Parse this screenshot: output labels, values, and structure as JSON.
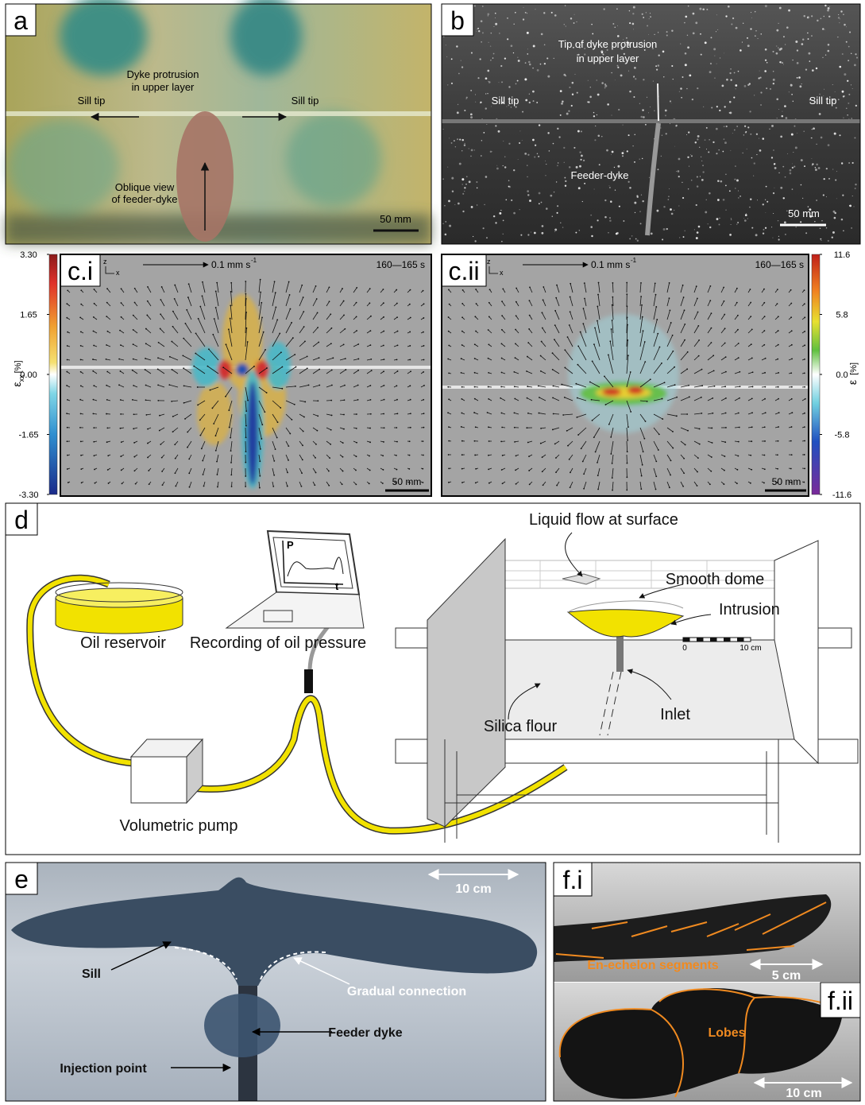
{
  "panel_a": {
    "label": "a",
    "sill_tip_left": "Sill tip",
    "sill_tip_right": "Sill tip",
    "dyke_protrusion": [
      "Dyke protrusion",
      "in upper layer"
    ],
    "feeder_view": [
      "Oblique view",
      "of feeder-dyke"
    ],
    "scale_bar": "50 mm"
  },
  "panel_b": {
    "label": "b",
    "dyke_tip": [
      "Tip of dyke protrusion",
      "in upper layer"
    ],
    "sill_tip_left": "Sill tip",
    "sill_tip_right": "Sill tip",
    "feeder": "Feeder-dyke",
    "scale_bar": "50 mm"
  },
  "panel_c_i": {
    "label": "c.i",
    "axes": {
      "z": "z",
      "x": "x"
    },
    "velocity": "0.1 mm s",
    "velocity_exp": "-1",
    "time": "160—165 s",
    "scale_bar": "50 mm",
    "colorbar": {
      "symbol": "ε",
      "subscript": "xx",
      "unit": "[%]",
      "lim": [
        -3.3,
        3.3
      ],
      "ticks": [
        {
          "value": 3.3,
          "label": "3.30"
        },
        1.65,
        {
          "value": 0,
          "label": "0.00"
        },
        -1.65,
        {
          "value": -3.3,
          "label": "-3.30"
        }
      ]
    }
  },
  "panel_c_ii": {
    "label": "c.ii",
    "axes": {
      "z": "z",
      "x": "x"
    },
    "velocity": "0.1 mm s",
    "velocity_exp": "-1",
    "time": "160—165 s",
    "scale_bar": "50 mm",
    "colorbar": {
      "symbol": "ε",
      "unit": "[%]",
      "lim": [
        -11.6,
        11.6
      ],
      "ticks": [
        11.6,
        5.8,
        {
          "value": 0,
          "label": "0.0"
        },
        -5.8,
        -11.6
      ]
    }
  },
  "panel_d": {
    "label": "d",
    "oil_reservoir": "Oil reservoir",
    "recording": "Recording of oil pressure",
    "pump": "Volumetric pump",
    "liquid_flow": "Liquid flow at surface",
    "smooth_dome": "Smooth dome",
    "intrusion": "Intrusion",
    "silica_flour": "Silica flour",
    "inlet": "Inlet",
    "plot_p": "P",
    "plot_t": "t",
    "scale_start": "0",
    "scale_end": "10 cm"
  },
  "panel_e": {
    "label": "e",
    "scale_bar": "10 cm",
    "sill": "Sill",
    "gradual_connection": "Gradual connection",
    "feeder_dyke": "Feeder dyke",
    "injection_point": "Injection point"
  },
  "panel_f_i": {
    "label": "f.i",
    "segments": "En-echelon segments",
    "scale_bar": "5 cm"
  },
  "panel_f_ii": {
    "label": "f.ii",
    "lobes": "Lobes",
    "scale_bar": "10 cm"
  }
}
